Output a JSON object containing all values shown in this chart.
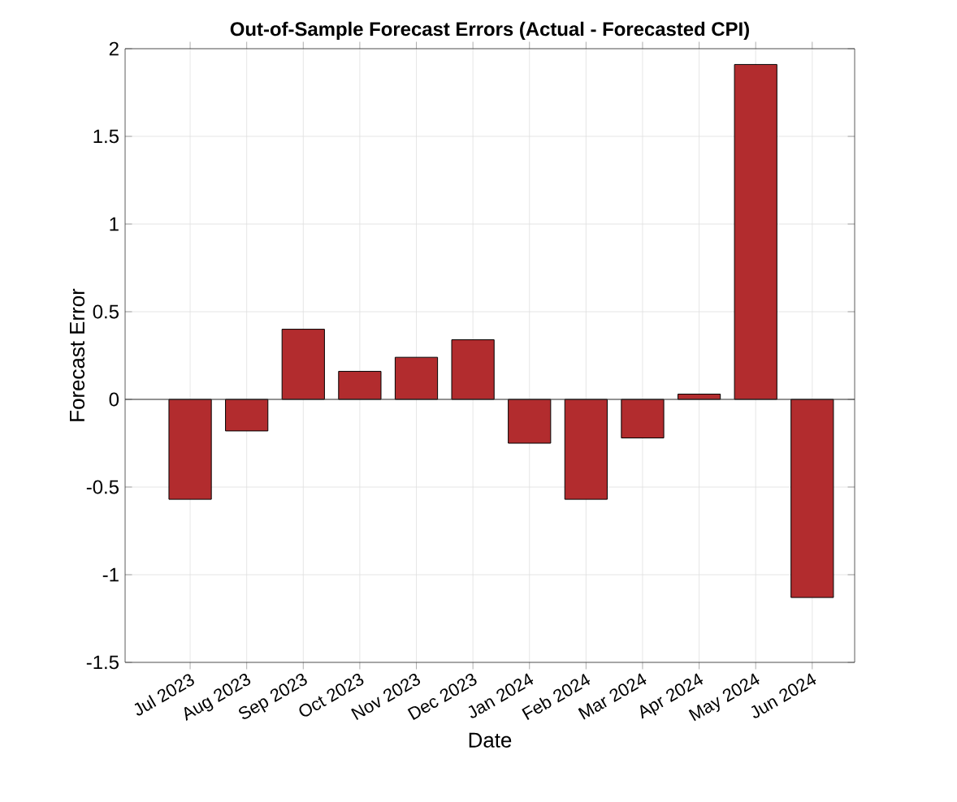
{
  "chart_data": {
    "type": "bar",
    "title": "Out-of-Sample Forecast Errors (Actual - Forecasted CPI)",
    "xlabel": "Date",
    "ylabel": "Forecast Error",
    "categories": [
      "Jul 2023",
      "Aug 2023",
      "Sep 2023",
      "Oct 2023",
      "Nov 2023",
      "Dec 2023",
      "Jan 2024",
      "Feb 2024",
      "Mar 2024",
      "Apr 2024",
      "May 2024",
      "Jun 2024"
    ],
    "values": [
      -0.57,
      -0.18,
      0.4,
      0.16,
      0.24,
      0.34,
      -0.25,
      -0.57,
      -0.22,
      0.03,
      1.91,
      -1.13
    ],
    "color": "#b22c2e",
    "ylim": [
      -1.5,
      2
    ],
    "yticks": [
      -1.5,
      -1,
      -0.5,
      0,
      0.5,
      1,
      1.5,
      2
    ],
    "grid": true
  }
}
